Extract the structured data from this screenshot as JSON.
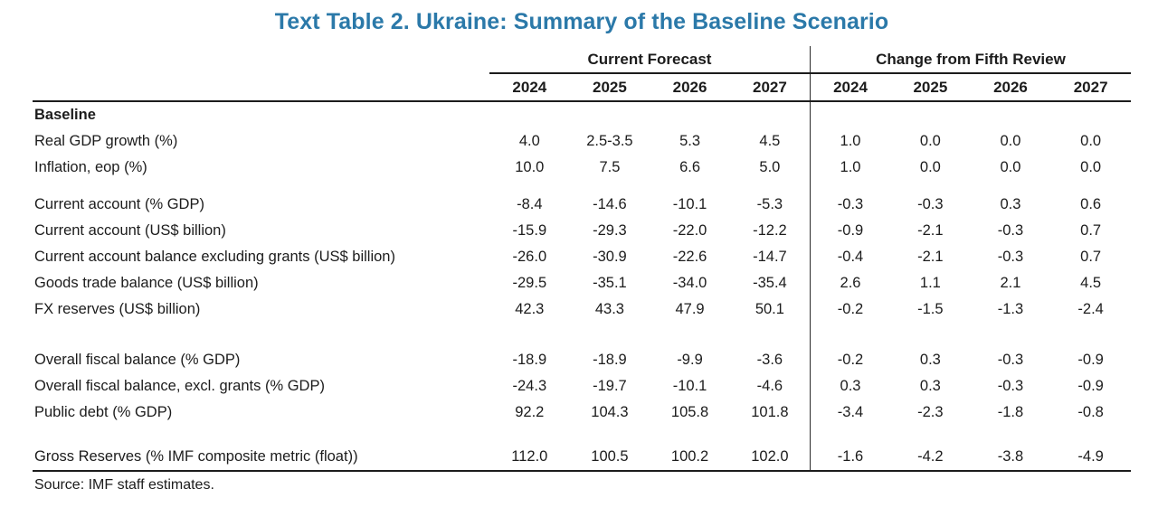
{
  "title": "Text Table 2. Ukraine: Summary of the Baseline Scenario",
  "title_color": "#2B79A9",
  "table": {
    "groups": [
      {
        "label": "Current Forecast",
        "years": [
          "2024",
          "2025",
          "2026",
          "2027"
        ]
      },
      {
        "label": "Change from Fifth Review",
        "years": [
          "2024",
          "2025",
          "2026",
          "2027"
        ]
      }
    ],
    "rows": [
      {
        "type": "section",
        "label": "Baseline"
      },
      {
        "type": "data",
        "label": "Real GDP growth (%)",
        "current": [
          "4.0",
          "2.5-3.5",
          "5.3",
          "4.5"
        ],
        "change": [
          "1.0",
          "0.0",
          "0.0",
          "0.0"
        ]
      },
      {
        "type": "data",
        "label": "Inflation, eop (%)",
        "current": [
          "10.0",
          "7.5",
          "6.6",
          "5.0"
        ],
        "change": [
          "1.0",
          "0.0",
          "0.0",
          "0.0"
        ]
      },
      {
        "type": "spacer",
        "size": "sm"
      },
      {
        "type": "data",
        "label": "Current account (% GDP)",
        "current": [
          "-8.4",
          "-14.6",
          "-10.1",
          "-5.3"
        ],
        "change": [
          "-0.3",
          "-0.3",
          "0.3",
          "0.6"
        ]
      },
      {
        "type": "data",
        "label": "Current account (US$ billion)",
        "current": [
          "-15.9",
          "-29.3",
          "-22.0",
          "-12.2"
        ],
        "change": [
          "-0.9",
          "-2.1",
          "-0.3",
          "0.7"
        ]
      },
      {
        "type": "data",
        "label": "Current account balance excluding grants (US$ billion)",
        "current": [
          "-26.0",
          "-30.9",
          "-22.6",
          "-14.7"
        ],
        "change": [
          "-0.4",
          "-2.1",
          "-0.3",
          "0.7"
        ]
      },
      {
        "type": "data",
        "label": "Goods trade balance (US$ billion)",
        "current": [
          "-29.5",
          "-35.1",
          "-34.0",
          "-35.4"
        ],
        "change": [
          "2.6",
          "1.1",
          "2.1",
          "4.5"
        ]
      },
      {
        "type": "data",
        "label": "FX reserves (US$ billion)",
        "current": [
          "42.3",
          "43.3",
          "47.9",
          "50.1"
        ],
        "change": [
          "-0.2",
          "-1.5",
          "-1.3",
          "-2.4"
        ]
      },
      {
        "type": "spacer",
        "size": "lg"
      },
      {
        "type": "data",
        "label": "Overall fiscal balance (% GDP)",
        "current": [
          "-18.9",
          "-18.9",
          "-9.9",
          "-3.6"
        ],
        "change": [
          "-0.2",
          "0.3",
          "-0.3",
          "-0.9"
        ]
      },
      {
        "type": "data",
        "label": "Overall fiscal balance, excl. grants (% GDP)",
        "current": [
          "-24.3",
          "-19.7",
          "-10.1",
          "-4.6"
        ],
        "change": [
          "0.3",
          "0.3",
          "-0.3",
          "-0.9"
        ]
      },
      {
        "type": "data",
        "label": "Public debt (% GDP)",
        "current": [
          "92.2",
          "104.3",
          "105.8",
          "101.8"
        ],
        "change": [
          "-3.4",
          "-2.3",
          "-1.8",
          "-0.8"
        ]
      },
      {
        "type": "spacer",
        "size": "md"
      },
      {
        "type": "data",
        "label": "Gross Reserves (% IMF composite metric (float))",
        "current": [
          "112.0",
          "100.5",
          "100.2",
          "102.0"
        ],
        "change": [
          "-1.6",
          "-4.2",
          "-3.8",
          "-4.9"
        ]
      }
    ]
  },
  "source": "Source: IMF staff estimates."
}
